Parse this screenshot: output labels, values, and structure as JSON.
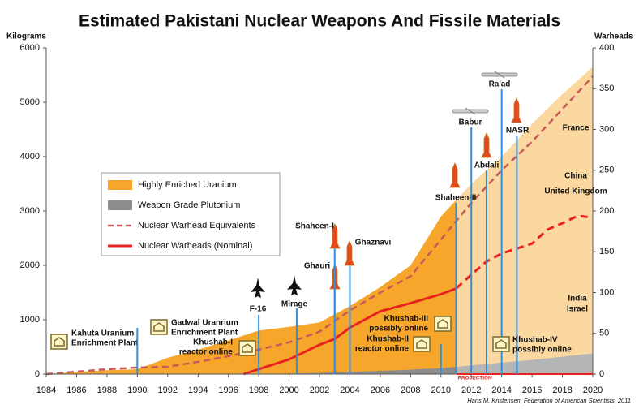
{
  "chart_data": {
    "type": "area-line",
    "title": "Estimated Pakistani Nuclear Weapons And Fissile Materials",
    "y_label": "Kilograms",
    "y2_label": "Warheads",
    "xlim": [
      1984,
      2020
    ],
    "xticks": [
      1984,
      1986,
      1988,
      1990,
      1992,
      1994,
      1996,
      1998,
      2000,
      2002,
      2004,
      2006,
      2008,
      2010,
      2012,
      2014,
      2016,
      2018,
      2020
    ],
    "ylim": [
      0,
      6000
    ],
    "yticks": [
      0,
      1000,
      2000,
      3000,
      4000,
      5000,
      6000
    ],
    "y2lim": [
      0,
      400
    ],
    "y2ticks": [
      0,
      50,
      100,
      150,
      200,
      250,
      300,
      350,
      400
    ],
    "projection": {
      "label": "PROJECTION",
      "from": 2011,
      "color": "#e8231f"
    },
    "series": [
      {
        "name": "Highly Enriched Uranium",
        "style": "area",
        "color": "#f6a62b",
        "projection_color": "#fbd8a0",
        "x": [
          1984,
          1986,
          1988,
          1990,
          1992,
          1994,
          1996,
          1998,
          2000,
          2002,
          2004,
          2006,
          2008,
          2010,
          2012,
          2014,
          2016,
          2018,
          2020
        ],
        "values": [
          0,
          40,
          70,
          90,
          300,
          450,
          620,
          800,
          870,
          950,
          1250,
          1600,
          2000,
          2900,
          3500,
          4000,
          4600,
          5150,
          5650
        ]
      },
      {
        "name": "Weapon Grade Plutonium",
        "style": "area",
        "color": "#8c8c8c",
        "projection_color": "#b5b5b5",
        "x": [
          1998,
          2000,
          2002,
          2004,
          2006,
          2008,
          2010,
          2012,
          2014,
          2016,
          2018,
          2020
        ],
        "values": [
          0,
          10,
          20,
          40,
          60,
          80,
          110,
          160,
          210,
          260,
          320,
          380
        ]
      },
      {
        "name": "Nuclear Warhead Equivalents",
        "style": "dashed",
        "axis": "y2",
        "color": "#c85a5a",
        "x": [
          1984,
          1986,
          1988,
          1990,
          1992,
          1994,
          1996,
          1998,
          2000,
          2002,
          2004,
          2006,
          2008,
          2010,
          2012,
          2014,
          2016,
          2018,
          2020
        ],
        "values": [
          0,
          3,
          6,
          8,
          9,
          15,
          22,
          30,
          39,
          52,
          78,
          100,
          120,
          165,
          210,
          250,
          285,
          325,
          365
        ]
      },
      {
        "name": "Nuclear Warheads (Nominal)",
        "style": "line",
        "axis": "y2",
        "color": "#e8231f",
        "x": [
          1997,
          1998,
          2000,
          2002,
          2003,
          2004,
          2006,
          2008,
          2010,
          2011,
          2012,
          2013,
          2014,
          2016,
          2017,
          2018,
          2019,
          2020
        ],
        "values": [
          0,
          6,
          18,
          36,
          43,
          57,
          77,
          87,
          98,
          105,
          122,
          138,
          148,
          160,
          177,
          185,
          194,
          192
        ]
      }
    ],
    "events": [
      {
        "text": [
          "Kahuta Uranium",
          "Enrichment Plant"
        ],
        "year": 1984
      },
      {
        "text": [
          "Gadwal Uranrium",
          "Enrichment Plant"
        ],
        "year": 1990
      },
      {
        "text": [
          "Khushab-I",
          "reactor online"
        ],
        "year": 1998
      },
      {
        "text": [
          "F-16"
        ],
        "year": 1998
      },
      {
        "text": [
          "Mirage"
        ],
        "year": 2000.5
      },
      {
        "text": [
          "Ghauri"
        ],
        "year": 2003
      },
      {
        "text": [
          "Shaheen-I"
        ],
        "year": 2003
      },
      {
        "text": [
          "Ghaznavi"
        ],
        "year": 2004
      },
      {
        "text": [
          "Khushab-II",
          "reactor online"
        ],
        "year": 2010
      },
      {
        "text": [
          "Khushab-III",
          "possibly online"
        ],
        "year": 2011
      },
      {
        "text": [
          "Shaheen-II"
        ],
        "year": 2011
      },
      {
        "text": [
          "Babur"
        ],
        "year": 2012
      },
      {
        "text": [
          "Abdali"
        ],
        "year": 2013
      },
      {
        "text": [
          "Ra'ad"
        ],
        "year": 2014
      },
      {
        "text": [
          "NASR"
        ],
        "year": 2015
      },
      {
        "text": [
          "Khushab-IV",
          "possibly online"
        ],
        "year": 2015
      }
    ],
    "countries": [
      "France",
      "China",
      "United Kingdom",
      "India",
      "Israel"
    ],
    "source": "Hans M. Kristensen, Federation of American Scientists, 2011"
  }
}
